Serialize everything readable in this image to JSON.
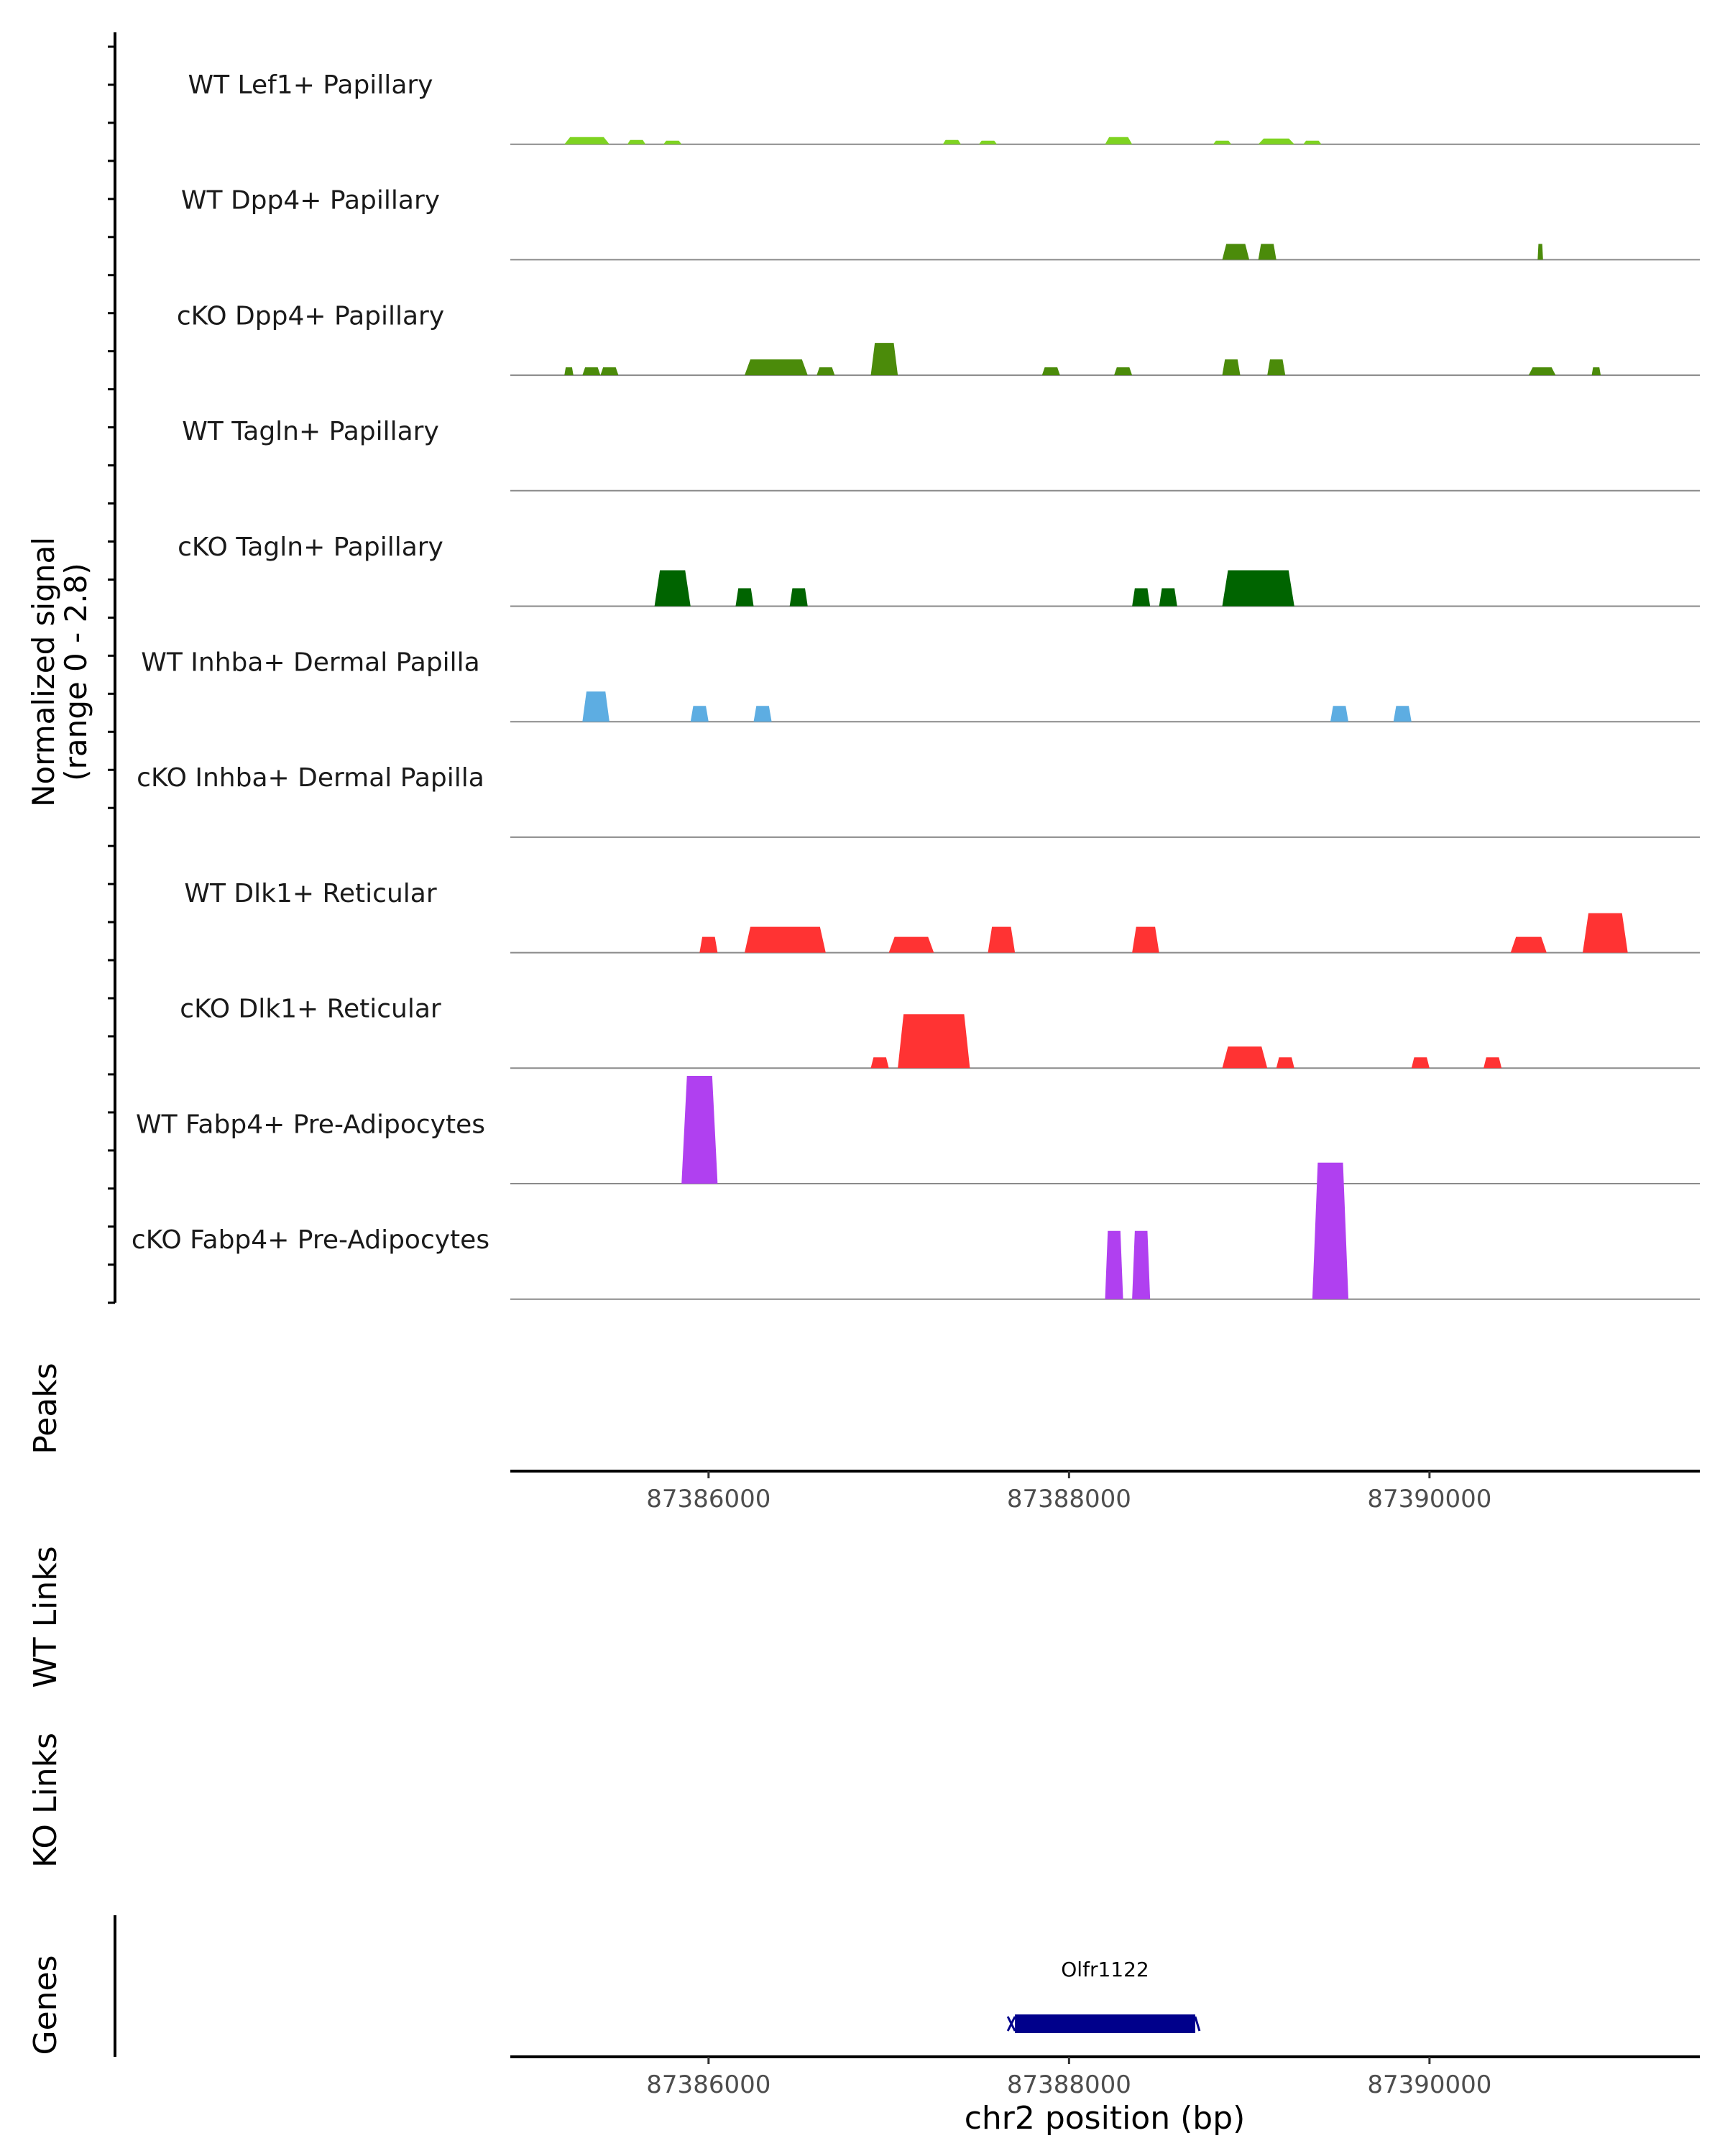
{
  "chart_data": {
    "type": "area",
    "subtype": "genome-coverage-track",
    "signal_axis_label": [
      "Normalized signal",
      "(range 0 - 2.8)"
    ],
    "signal_range": [
      0,
      2.8
    ],
    "x_range": [
      87384900,
      87391500
    ],
    "xlabel": "chr2 position (bp)",
    "x_ticks": [
      87386000,
      87388000,
      87390000
    ],
    "x_tick_labels": [
      "87386000",
      "87388000",
      "87390000"
    ],
    "tracks": [
      {
        "name": "WT Lef1+ Papillary",
        "color": "#7ED321",
        "peaks": [
          [
            87385200,
            87385450,
            0.1
          ],
          [
            87385550,
            87385650,
            0.06
          ],
          [
            87385750,
            87385850,
            0.05
          ],
          [
            87387300,
            87387400,
            0.06
          ],
          [
            87387500,
            87387600,
            0.05
          ],
          [
            87388200,
            87388350,
            0.1
          ],
          [
            87388800,
            87388900,
            0.05
          ],
          [
            87389050,
            87389250,
            0.08
          ],
          [
            87389300,
            87389400,
            0.05
          ]
        ]
      },
      {
        "name": "WT Dpp4+ Papillary",
        "color": "#4B8B0A",
        "peaks": [
          [
            87388850,
            87389000,
            0.22
          ],
          [
            87389050,
            87389150,
            0.22
          ],
          [
            87390600,
            87390630,
            0.22
          ]
        ]
      },
      {
        "name": "cKO Dpp4+ Papillary",
        "color": "#4B8B0A",
        "peaks": [
          [
            87385200,
            87385250,
            0.11
          ],
          [
            87385300,
            87385400,
            0.11
          ],
          [
            87385400,
            87385500,
            0.11
          ],
          [
            87386200,
            87386550,
            0.22
          ],
          [
            87386600,
            87386700,
            0.11
          ],
          [
            87386900,
            87387050,
            0.45
          ],
          [
            87387850,
            87387950,
            0.11
          ],
          [
            87388250,
            87388350,
            0.11
          ],
          [
            87388850,
            87388950,
            0.22
          ],
          [
            87389100,
            87389200,
            0.22
          ],
          [
            87390550,
            87390700,
            0.11
          ],
          [
            87390900,
            87390950,
            0.11
          ]
        ]
      },
      {
        "name": "WT Tagln+ Papillary",
        "color": "#4B8B0A",
        "peaks": []
      },
      {
        "name": "cKO Tagln+ Papillary",
        "color": "#006400",
        "peaks": [
          [
            87385700,
            87385900,
            0.5
          ],
          [
            87386150,
            87386250,
            0.25
          ],
          [
            87386450,
            87386550,
            0.25
          ],
          [
            87388350,
            87388450,
            0.25
          ],
          [
            87388500,
            87388600,
            0.25
          ],
          [
            87388850,
            87389250,
            0.5
          ]
        ]
      },
      {
        "name": "WT Inhba+ Dermal Papilla",
        "color": "#5DADE2",
        "peaks": [
          [
            87385300,
            87385450,
            0.42
          ],
          [
            87385900,
            87386000,
            0.22
          ],
          [
            87386250,
            87386350,
            0.22
          ],
          [
            87389450,
            87389550,
            0.22
          ],
          [
            87389800,
            87389900,
            0.22
          ]
        ]
      },
      {
        "name": "cKO Inhba+ Dermal Papilla",
        "color": "#5DADE2",
        "peaks": []
      },
      {
        "name": "WT Dlk1+ Reticular",
        "color": "#FF3333",
        "peaks": [
          [
            87385950,
            87386050,
            0.22
          ],
          [
            87386200,
            87386650,
            0.36
          ],
          [
            87387000,
            87387250,
            0.22
          ],
          [
            87387550,
            87387700,
            0.36
          ],
          [
            87388350,
            87388500,
            0.36
          ],
          [
            87390450,
            87390650,
            0.22
          ],
          [
            87390850,
            87391100,
            0.55
          ]
        ]
      },
      {
        "name": "cKO Dlk1+ Reticular",
        "color": "#FF3333",
        "peaks": [
          [
            87386900,
            87387000,
            0.15
          ],
          [
            87387050,
            87387450,
            0.75
          ],
          [
            87388850,
            87389100,
            0.3
          ],
          [
            87389150,
            87389250,
            0.15
          ],
          [
            87389900,
            87390000,
            0.15
          ],
          [
            87390300,
            87390400,
            0.15
          ]
        ]
      },
      {
        "name": "WT Fabp4+ Pre-Adipocytes",
        "color": "#B040F0",
        "peaks": [
          [
            87385850,
            87386050,
            1.5
          ]
        ]
      },
      {
        "name": "cKO Fabp4+ Pre-Adipocytes",
        "color": "#B040F0",
        "peaks": [
          [
            87388200,
            87388300,
            0.95
          ],
          [
            87388350,
            87388450,
            0.95
          ],
          [
            87389350,
            87389550,
            1.9
          ]
        ]
      }
    ],
    "other_tracks": {
      "peaks": "Peaks",
      "wt_links": "WT Links",
      "ko_links": "KO Links",
      "genes": "Genes"
    },
    "genes": [
      {
        "name": "Olfr1122",
        "start": 87387700,
        "end": 87388700,
        "color": "#00008B"
      }
    ]
  }
}
